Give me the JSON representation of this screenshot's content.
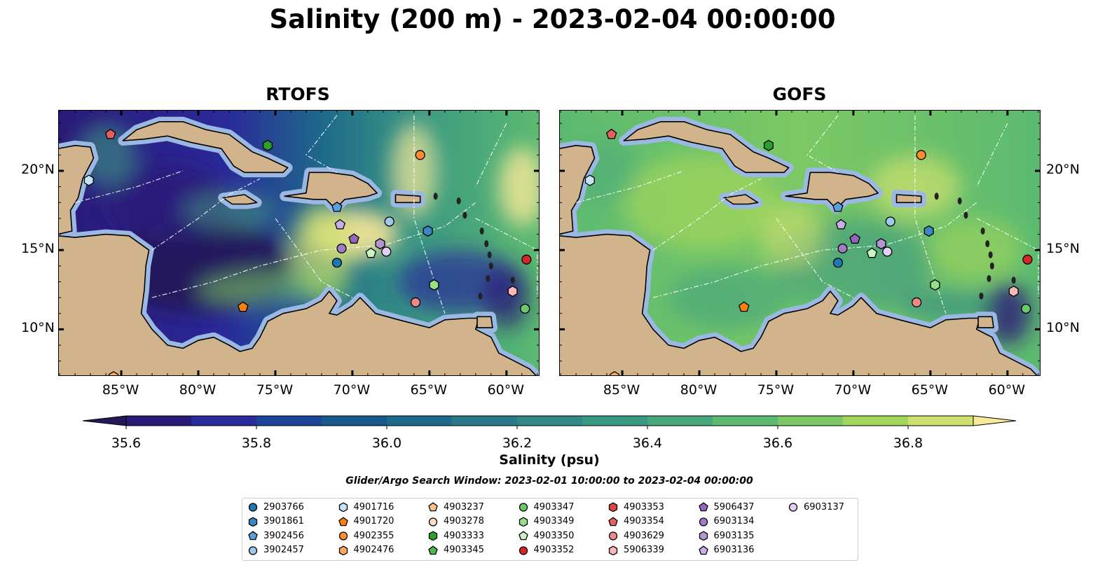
{
  "title": "Salinity (200 m) - 2023-02-04 00:00:00",
  "panels": [
    {
      "title": "RTOFS"
    },
    {
      "title": "GOFS"
    }
  ],
  "map_data": {
    "lon_range": [
      -89.05,
      -57.9
    ],
    "lat_range": [
      7.1,
      23.8
    ],
    "lon_ticks": [
      -85,
      -80,
      -75,
      -70,
      -65,
      -60
    ],
    "lon_tick_labels": [
      "85°W",
      "80°W",
      "75°W",
      "70°W",
      "65°W",
      "60°W"
    ],
    "lat_ticks": [
      20,
      15,
      10
    ],
    "lat_tick_labels": [
      "20°N",
      "15°N",
      "10°N"
    ],
    "platforms": [
      {
        "id": "2903766",
        "shape": "circle",
        "color": "#1f77b4",
        "lon": -71.0,
        "lat": 14.2
      },
      {
        "id": "3901861",
        "shape": "hexagon",
        "color": "#3a87c4",
        "lon": -65.1,
        "lat": 16.2
      },
      {
        "id": "3902456",
        "shape": "pentagon",
        "color": "#5aa0d8",
        "lon": -71.0,
        "lat": 17.7
      },
      {
        "id": "3902457",
        "shape": "circle",
        "color": "#9ec9ea",
        "lon": -67.6,
        "lat": 16.8
      },
      {
        "id": "4901716",
        "shape": "hexagon",
        "color": "#c6e2f7",
        "lon": -87.1,
        "lat": 19.4
      },
      {
        "id": "4901720",
        "shape": "pentagon",
        "color": "#ff7f0e",
        "lon": -77.1,
        "lat": 11.4
      },
      {
        "id": "4902355",
        "shape": "circle",
        "color": "#ff8c2e",
        "lon": -65.6,
        "lat": 21.0
      },
      {
        "id": "4902476",
        "shape": "hexagon",
        "color": "#ffa860",
        "lon": -85.5,
        "lat": 7.0
      },
      {
        "id": "4903237",
        "shape": "pentagon",
        "color": "#ffc08a",
        "lon": null,
        "lat": null
      },
      {
        "id": "4903278",
        "shape": "circle",
        "color": "#ffdcc0",
        "lon": null,
        "lat": null
      },
      {
        "id": "4903333",
        "shape": "hexagon",
        "color": "#2ca02c",
        "lon": -75.5,
        "lat": 21.6
      },
      {
        "id": "4903345",
        "shape": "pentagon",
        "color": "#4db84d",
        "lon": null,
        "lat": null
      },
      {
        "id": "4903347",
        "shape": "circle",
        "color": "#6cc86c",
        "lon": -58.8,
        "lat": 11.3
      },
      {
        "id": "4903349",
        "shape": "hexagon",
        "color": "#98df8a",
        "lon": -64.7,
        "lat": 12.8
      },
      {
        "id": "4903350",
        "shape": "pentagon",
        "color": "#c8f5c0",
        "lon": -68.8,
        "lat": 14.8
      },
      {
        "id": "4903352",
        "shape": "circle",
        "color": "#d62728",
        "lon": -58.7,
        "lat": 14.4
      },
      {
        "id": "4903353",
        "shape": "hexagon",
        "color": "#dc4646",
        "lon": null,
        "lat": null
      },
      {
        "id": "4903354",
        "shape": "pentagon",
        "color": "#e46060",
        "lon": -85.7,
        "lat": 22.3
      },
      {
        "id": "4903629",
        "shape": "circle",
        "color": "#f08a8a",
        "lon": -65.9,
        "lat": 11.7
      },
      {
        "id": "5906339",
        "shape": "hexagon",
        "color": "#f8b8b8",
        "lon": -59.6,
        "lat": 12.4
      },
      {
        "id": "5906437",
        "shape": "pentagon",
        "color": "#9467bd",
        "lon": -69.9,
        "lat": 15.7
      },
      {
        "id": "6903134",
        "shape": "circle",
        "color": "#a07cc8",
        "lon": -70.7,
        "lat": 15.1
      },
      {
        "id": "6903135",
        "shape": "hexagon",
        "color": "#b594d6",
        "lon": -68.2,
        "lat": 15.4
      },
      {
        "id": "6903136",
        "shape": "pentagon",
        "color": "#c8aee6",
        "lon": -70.8,
        "lat": 16.6
      },
      {
        "id": "6903137",
        "shape": "circle",
        "color": "#e2d0f5",
        "lon": -67.8,
        "lat": 14.9
      }
    ]
  },
  "colorbar": {
    "label": "Salinity (psu)",
    "levels": [
      35.6,
      35.7,
      35.8,
      35.9,
      36.0,
      36.1,
      36.2,
      36.3,
      36.4,
      36.5,
      36.6,
      36.7,
      36.8,
      36.9
    ],
    "colors": [
      "#2a1a78",
      "#2a2a9a",
      "#1a4596",
      "#155a8a",
      "#1e6a8a",
      "#2a7a88",
      "#328886",
      "#3a9882",
      "#48a87c",
      "#5bba70",
      "#7cc864",
      "#a3d65c",
      "#cfdf6e"
    ],
    "under_color": "#261758",
    "over_color": "#f8e898",
    "ticks": [
      35.6,
      35.8,
      36.0,
      36.2,
      36.4,
      36.6,
      36.8
    ],
    "tick_labels": [
      "35.6",
      "35.8",
      "36.0",
      "36.2",
      "36.4",
      "36.6",
      "36.8"
    ]
  },
  "search_window": "Glider/Argo Search Window: 2023-02-01 10:00:00 to 2023-02-04 00:00:00",
  "colors": {
    "land": "#d2b48c",
    "shelf": "#9ab8e2",
    "pacific": "#261758"
  }
}
